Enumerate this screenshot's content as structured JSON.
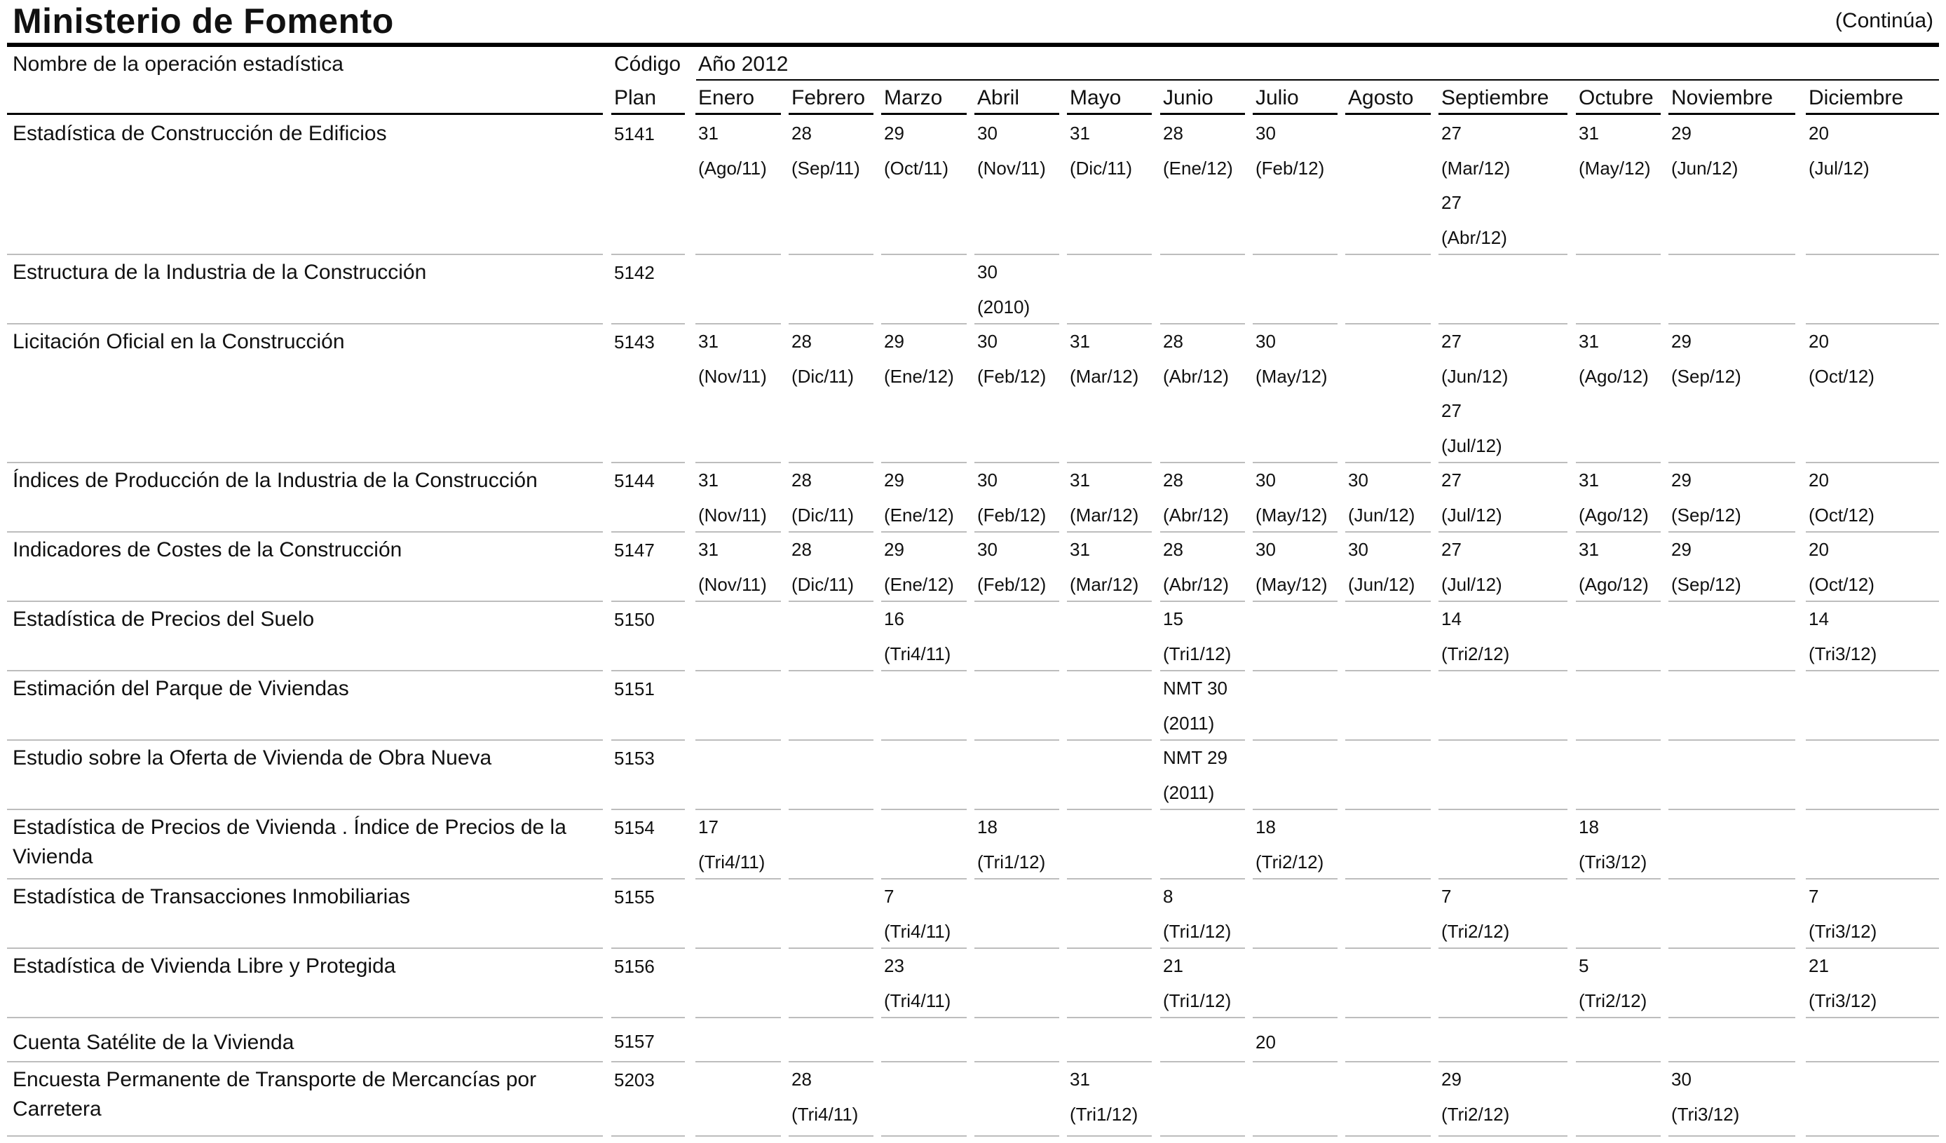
{
  "header": {
    "title": "Ministerio de Fomento",
    "continua": "(Continúa)",
    "col_name": "Nombre de la operación estadística",
    "col_code_top": "Código",
    "col_code_bottom": "Plan",
    "year_label": "Año 2012"
  },
  "months": [
    "Enero",
    "Febrero",
    "Marzo",
    "Abril",
    "Mayo",
    "Junio",
    "Julio",
    "Agosto",
    "Septiembre",
    "Octubre",
    "Noviembre",
    "Diciembre"
  ],
  "rows": [
    {
      "name": "Estadística de Construcción de Edificios",
      "code": "5141",
      "cells": [
        [
          "31",
          "(Ago/11)"
        ],
        [
          "28",
          "(Sep/11)"
        ],
        [
          "29",
          "(Oct/11)"
        ],
        [
          "30",
          "(Nov/11)"
        ],
        [
          "31",
          "(Dic/11)"
        ],
        [
          "28",
          "(Ene/12)"
        ],
        [
          "30",
          "(Feb/12)"
        ],
        [],
        [
          "27",
          "(Mar/12)",
          "27",
          "(Abr/12)"
        ],
        [
          "31",
          "(May/12)"
        ],
        [
          "29",
          "(Jun/12)"
        ],
        [
          "20",
          "(Jul/12)"
        ]
      ]
    },
    {
      "name": "Estructura de la Industria de la Construcción",
      "code": "5142",
      "cells": [
        [],
        [],
        [],
        [
          "30",
          "(2010)"
        ],
        [],
        [],
        [],
        [],
        [],
        [],
        [],
        []
      ]
    },
    {
      "name": "Licitación Oficial en la Construcción",
      "code": "5143",
      "cells": [
        [
          "31",
          "(Nov/11)"
        ],
        [
          "28",
          "(Dic/11)"
        ],
        [
          "29",
          "(Ene/12)"
        ],
        [
          "30",
          "(Feb/12)"
        ],
        [
          "31",
          "(Mar/12)"
        ],
        [
          "28",
          "(Abr/12)"
        ],
        [
          "30",
          "(May/12)"
        ],
        [],
        [
          "27",
          "(Jun/12)",
          "27",
          "(Jul/12)"
        ],
        [
          "31",
          "(Ago/12)"
        ],
        [
          "29",
          "(Sep/12)"
        ],
        [
          "20",
          "(Oct/12)"
        ]
      ]
    },
    {
      "name": "Índices de Producción de la Industria de la Construcción",
      "code": "5144",
      "cells": [
        [
          "31",
          "(Nov/11)"
        ],
        [
          "28",
          "(Dic/11)"
        ],
        [
          "29",
          "(Ene/12)"
        ],
        [
          "30",
          "(Feb/12)"
        ],
        [
          "31",
          "(Mar/12)"
        ],
        [
          "28",
          "(Abr/12)"
        ],
        [
          "30",
          "(May/12)"
        ],
        [
          "30",
          "(Jun/12)"
        ],
        [
          "27",
          "(Jul/12)"
        ],
        [
          "31",
          "(Ago/12)"
        ],
        [
          "29",
          "(Sep/12)"
        ],
        [
          "20",
          "(Oct/12)"
        ]
      ]
    },
    {
      "name": "Indicadores de Costes de la Construcción",
      "code": "5147",
      "cells": [
        [
          "31",
          "(Nov/11)"
        ],
        [
          "28",
          "(Dic/11)"
        ],
        [
          "29",
          "(Ene/12)"
        ],
        [
          "30",
          "(Feb/12)"
        ],
        [
          "31",
          "(Mar/12)"
        ],
        [
          "28",
          "(Abr/12)"
        ],
        [
          "30",
          "(May/12)"
        ],
        [
          "30",
          "(Jun/12)"
        ],
        [
          "27",
          "(Jul/12)"
        ],
        [
          "31",
          "(Ago/12)"
        ],
        [
          "29",
          "(Sep/12)"
        ],
        [
          "20",
          "(Oct/12)"
        ]
      ]
    },
    {
      "name": "Estadística de Precios del Suelo",
      "code": "5150",
      "cells": [
        [],
        [],
        [
          "16",
          "(Tri4/11)"
        ],
        [],
        [],
        [
          "15",
          "(Tri1/12)"
        ],
        [],
        [],
        [
          "14",
          "(Tri2/12)"
        ],
        [],
        [],
        [
          "14",
          "(Tri3/12)"
        ]
      ]
    },
    {
      "name": "Estimación del Parque de Viviendas",
      "code": "5151",
      "cells": [
        [],
        [],
        [],
        [],
        [],
        [
          "NMT 30",
          "(2011)"
        ],
        [],
        [],
        [],
        [],
        [],
        []
      ]
    },
    {
      "name": "Estudio sobre la Oferta de Vivienda de Obra Nueva",
      "code": "5153",
      "cells": [
        [],
        [],
        [],
        [],
        [],
        [
          "NMT 29",
          "(2011)"
        ],
        [],
        [],
        [],
        [],
        [],
        []
      ]
    },
    {
      "name": "Estadística de Precios de Vivienda . Índice de Precios de la Vivienda",
      "code": "5154",
      "cells": [
        [
          "17",
          "(Tri4/11)"
        ],
        [],
        [],
        [
          "18",
          "(Tri1/12)"
        ],
        [],
        [],
        [
          "18",
          "(Tri2/12)"
        ],
        [],
        [],
        [
          "18",
          "(Tri3/12)"
        ],
        [],
        []
      ]
    },
    {
      "name": "Estadística de Transacciones Inmobiliarias",
      "code": "5155",
      "cells": [
        [],
        [],
        [
          "7",
          "(Tri4/11)"
        ],
        [],
        [],
        [
          "8",
          "(Tri1/12)"
        ],
        [],
        [],
        [
          "7",
          "(Tri2/12)"
        ],
        [],
        [],
        [
          "7",
          "(Tri3/12)"
        ]
      ]
    },
    {
      "name": "Estadística de Vivienda Libre y Protegida",
      "code": "5156",
      "cells": [
        [],
        [],
        [
          "23",
          "(Tri4/11)"
        ],
        [],
        [],
        [
          "21",
          "(Tri1/12)"
        ],
        [],
        [],
        [],
        [
          "5",
          "(Tri2/12)"
        ],
        [],
        [
          "21",
          "(Tri3/12)"
        ]
      ]
    },
    {
      "name": "Cuenta Satélite de la Vivienda",
      "code": "5157",
      "cells": [
        [],
        [],
        [],
        [],
        [],
        [],
        [
          "20"
        ],
        [],
        [],
        [],
        [],
        []
      ]
    },
    {
      "name": "Encuesta Permanente de Transporte de Mercancías por Carretera",
      "code": "5203",
      "cells": [
        [],
        [
          "28",
          "(Tri4/11)"
        ],
        [],
        [],
        [
          "31",
          "(Tri1/12)"
        ],
        [],
        [],
        [],
        [
          "29",
          "(Tri2/12)"
        ],
        [],
        [
          "30",
          "(Tri3/12)"
        ],
        []
      ]
    }
  ]
}
